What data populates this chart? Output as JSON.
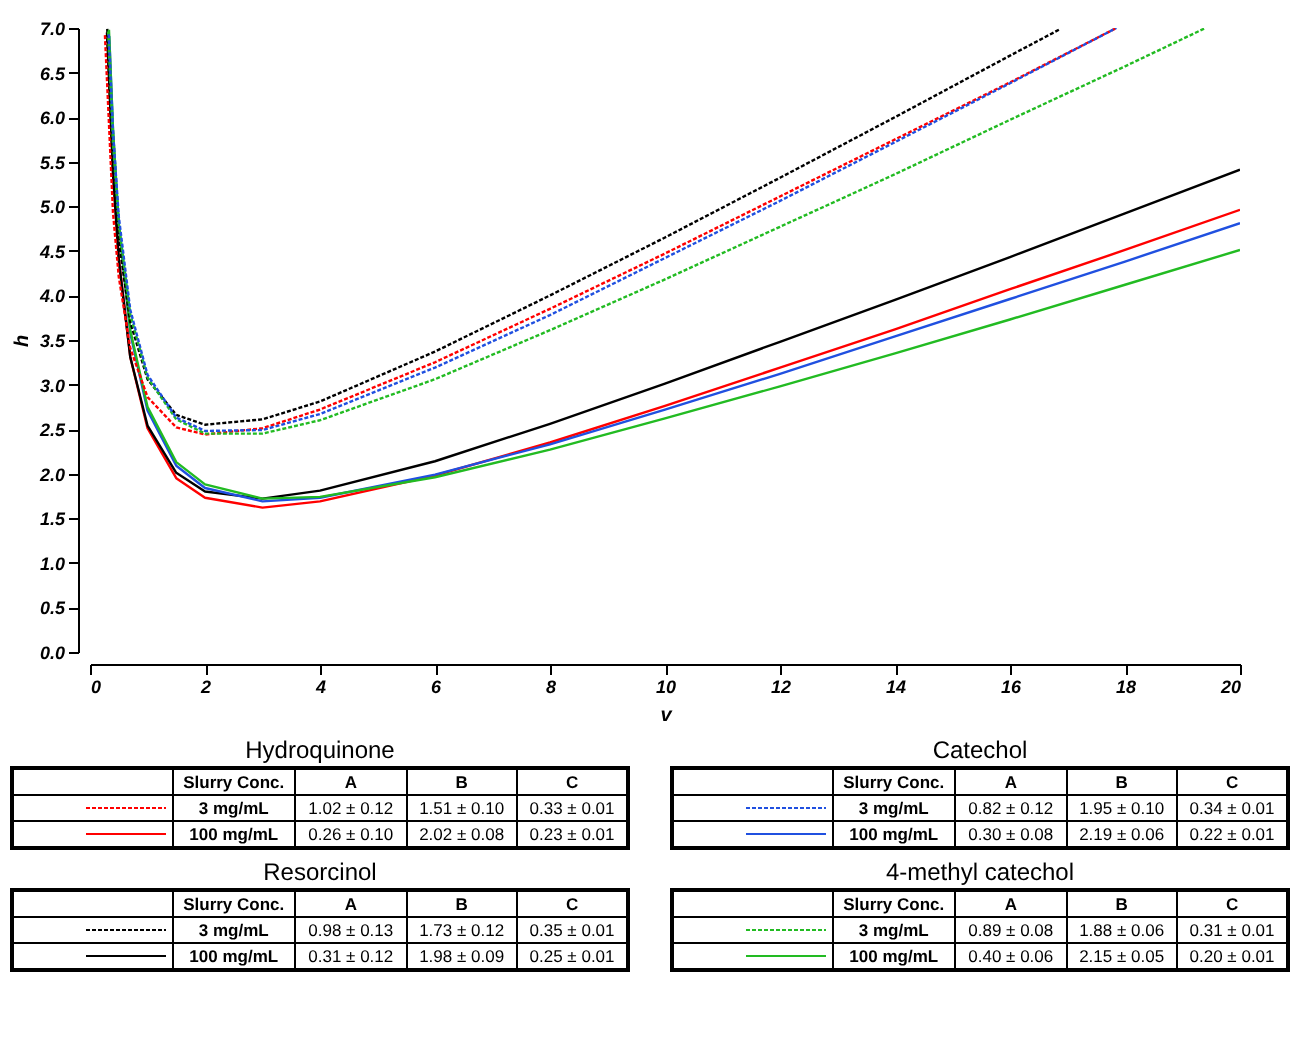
{
  "chart_data": {
    "type": "line",
    "legend": "bottom",
    "xlabel": "v",
    "ylabel": "h",
    "xlim": [
      0,
      20
    ],
    "xticks": [
      0,
      2,
      4,
      6,
      8,
      10,
      12,
      14,
      16,
      18,
      20
    ],
    "ylim": [
      0,
      7
    ],
    "yticks": [
      {
        "value": 0,
        "label": "0.0"
      },
      0.5,
      {
        "value": 1,
        "label": "1.0"
      },
      1.5,
      {
        "value": 2,
        "label": "2.0"
      },
      2.5,
      {
        "value": 3,
        "label": "3.0"
      },
      3.5,
      {
        "value": 4,
        "label": "4.0"
      },
      4.5,
      {
        "value": 5,
        "label": "5.0"
      },
      5.5,
      {
        "value": 6,
        "label": "6.0"
      },
      6.5,
      {
        "value": 7,
        "label": "7.0"
      }
    ],
    "series": [
      {
        "name": "3 mg/mL",
        "color": "#ff0000",
        "line_style": "dashed",
        "x": [
          0.26,
          0.4,
          0.5,
          0.7,
          1,
          1.5,
          2,
          3,
          4,
          6,
          8,
          10,
          12,
          14,
          16,
          17.85
        ],
        "values": [
          6.92,
          4.93,
          4.21,
          3.41,
          2.86,
          2.52,
          2.44,
          2.51,
          2.72,
          3.25,
          3.85,
          4.47,
          5.11,
          5.75,
          6.39,
          7.0
        ]
      },
      {
        "name": "100 mg/mL",
        "color": "#ff0000",
        "line_style": "solid",
        "x": [
          0.305,
          0.4,
          0.5,
          0.7,
          1,
          1.5,
          2,
          3,
          4,
          6,
          8,
          10,
          12,
          14,
          16,
          18,
          20
        ],
        "values": [
          6.95,
          5.4,
          4.42,
          3.31,
          2.51,
          1.95,
          1.73,
          1.62,
          1.69,
          1.98,
          2.35,
          2.76,
          3.19,
          3.62,
          4.07,
          4.51,
          4.96
        ]
      },
      {
        "name": "3 mg/mL",
        "color": "#000000",
        "line_style": "dashed",
        "x": [
          0.295,
          0.4,
          0.5,
          0.7,
          1,
          1.5,
          2,
          3,
          4,
          6,
          8,
          10,
          12,
          14,
          16,
          16.85
        ],
        "values": [
          6.95,
          5.45,
          4.62,
          3.7,
          3.06,
          2.66,
          2.55,
          2.61,
          2.81,
          3.37,
          4.0,
          4.65,
          5.32,
          6.0,
          6.69,
          6.98
        ]
      },
      {
        "name": "100 mg/mL",
        "color": "#000000",
        "line_style": "solid",
        "x": [
          0.3,
          0.4,
          0.5,
          0.7,
          1,
          1.5,
          2,
          3,
          4,
          6,
          8,
          10,
          12,
          14,
          16,
          18,
          20
        ],
        "values": [
          6.99,
          5.36,
          4.4,
          3.31,
          2.54,
          2.01,
          1.8,
          1.72,
          1.81,
          2.14,
          2.56,
          3.01,
          3.48,
          3.95,
          4.43,
          4.92,
          5.41
        ]
      },
      {
        "name": "3 mg/mL",
        "color": "#2050e0",
        "line_style": "dashed",
        "x": [
          0.325,
          0.4,
          0.5,
          0.7,
          1,
          1.5,
          2,
          3,
          4,
          6,
          8,
          10,
          12,
          14,
          16,
          17.85
        ],
        "values": [
          6.93,
          5.83,
          4.89,
          3.84,
          3.11,
          2.63,
          2.48,
          2.49,
          2.67,
          3.19,
          3.78,
          4.42,
          5.06,
          5.72,
          6.38,
          7.0
        ]
      },
      {
        "name": "100 mg/mL",
        "color": "#2050e0",
        "line_style": "solid",
        "x": [
          0.335,
          0.4,
          0.5,
          0.7,
          1,
          1.5,
          2,
          3,
          4,
          6,
          8,
          10,
          12,
          14,
          16,
          18,
          20
        ],
        "values": [
          6.91,
          5.86,
          4.79,
          3.58,
          2.71,
          2.09,
          1.84,
          1.69,
          1.73,
          1.99,
          2.33,
          2.72,
          3.12,
          3.54,
          3.96,
          4.38,
          4.81
        ]
      },
      {
        "name": "3 mg/mL",
        "color": "#22bb22",
        "line_style": "dashed",
        "x": [
          0.315,
          0.4,
          0.5,
          0.7,
          1,
          1.5,
          2,
          3,
          4,
          6,
          8,
          10,
          12,
          14,
          16,
          18,
          19.4
        ],
        "values": [
          6.96,
          5.71,
          4.81,
          3.79,
          3.08,
          2.61,
          2.45,
          2.45,
          2.6,
          3.06,
          3.61,
          4.18,
          4.77,
          5.36,
          5.97,
          6.57,
          7.0
        ]
      },
      {
        "name": "100 mg/mL",
        "color": "#22bb22",
        "line_style": "solid",
        "x": [
          0.33,
          0.4,
          0.5,
          0.7,
          1,
          1.5,
          2,
          3,
          4,
          6,
          8,
          10,
          12,
          14,
          16,
          18,
          20
        ],
        "values": [
          6.98,
          5.86,
          4.8,
          3.61,
          2.75,
          2.13,
          1.88,
          1.72,
          1.74,
          1.96,
          2.27,
          2.62,
          2.98,
          3.35,
          3.73,
          4.12,
          4.51
        ]
      }
    ],
    "annotations": [
      "Hydroquinone",
      "Slurry Conc.",
      "A",
      "B",
      "C",
      "1.02 ± 0.12",
      "1.51 ± 0.10",
      "0.33 ± 0.01",
      "0.26 ± 0.10",
      "2.02 ± 0.08",
      "0.23 ± 0.01",
      "Resorcinol",
      "Slurry Conc.",
      "A",
      "B",
      "C",
      "0.98 ± 0.13",
      "1.73 ± 0.12",
      "0.35 ± 0.01",
      "0.31 ± 0.12",
      "1.98 ± 0.09",
      "0.25 ± 0.01",
      "Catechol",
      "Slurry Conc.",
      "A",
      "B",
      "C",
      "0.82 ± 0.12",
      "1.95 ± 0.10",
      "0.34 ± 0.01",
      "0.30 ± 0.08",
      "2.19 ± 0.06",
      "0.22 ± 0.01",
      "4-methyl catechol",
      "Slurry Conc.",
      "A",
      "B",
      "C",
      "0.89 ± 0.08",
      "1.88 ± 0.06",
      "0.31 ± 0.01",
      "0.40 ± 0.06",
      "2.15 ± 0.05",
      "0.20 ± 0.01"
    ]
  }
}
